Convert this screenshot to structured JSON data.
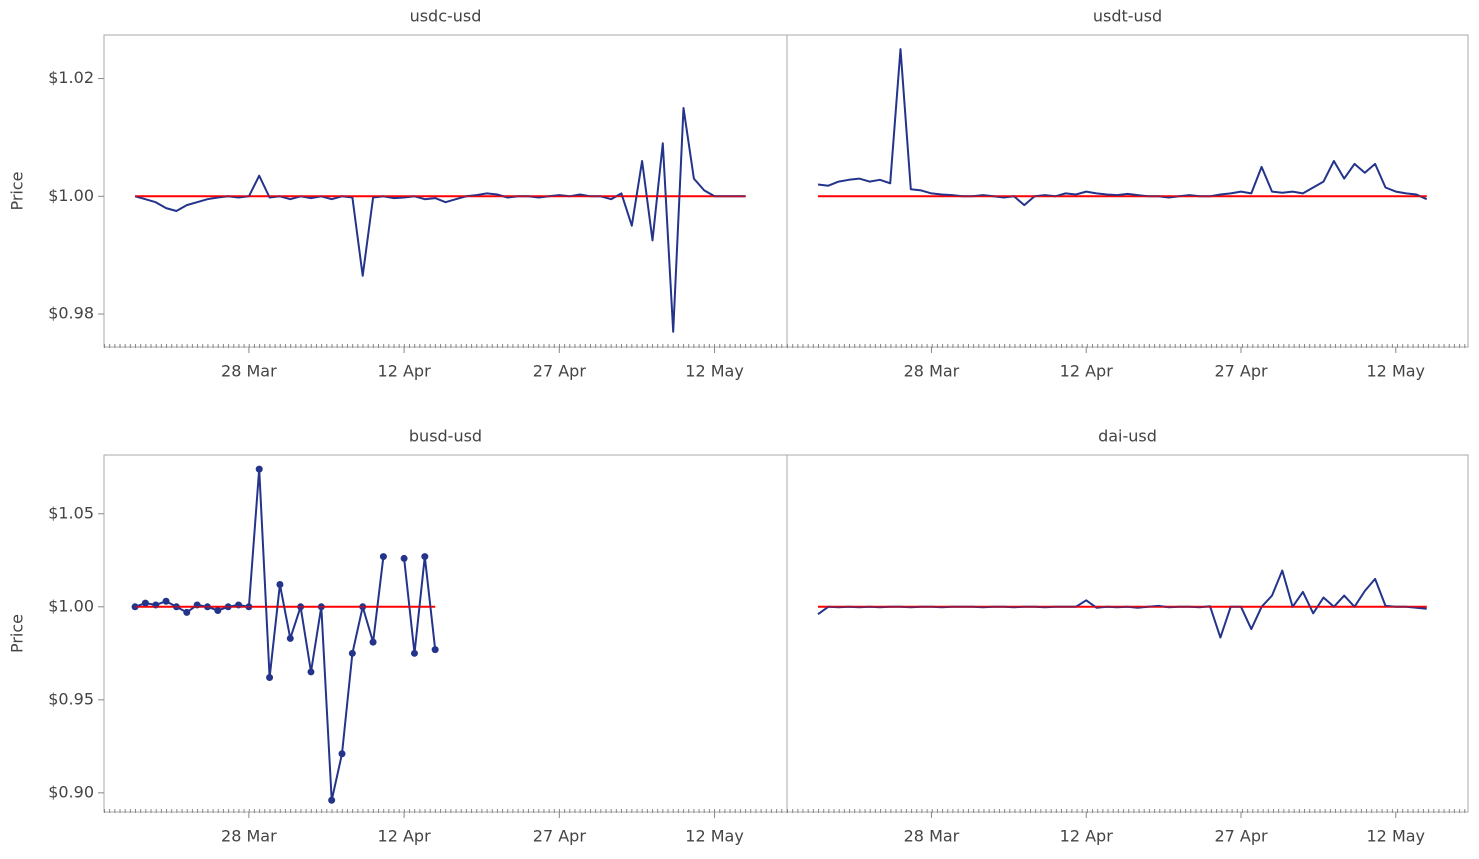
{
  "chart_data": [
    {
      "type": "line",
      "title": "usdc-usd",
      "ylabel": "Price",
      "color": "#24348a",
      "x": [
        "17 Mar",
        "18 Mar",
        "19 Mar",
        "20 Mar",
        "21 Mar",
        "22 Mar",
        "23 Mar",
        "24 Mar",
        "25 Mar",
        "26 Mar",
        "27 Mar",
        "28 Mar",
        "29 Mar",
        "30 Mar",
        "31 Mar",
        "1 Apr",
        "2 Apr",
        "3 Apr",
        "4 Apr",
        "5 Apr",
        "6 Apr",
        "7 Apr",
        "8 Apr",
        "9 Apr",
        "10 Apr",
        "11 Apr",
        "12 Apr",
        "13 Apr",
        "14 Apr",
        "15 Apr",
        "16 Apr",
        "17 Apr",
        "18 Apr",
        "19 Apr",
        "20 Apr",
        "21 Apr",
        "22 Apr",
        "23 Apr",
        "24 Apr",
        "25 Apr",
        "26 Apr",
        "27 Apr",
        "28 Apr",
        "29 Apr",
        "30 Apr",
        "1 May",
        "2 May",
        "3 May",
        "4 May",
        "5 May",
        "6 May",
        "7 May",
        "8 May",
        "9 May",
        "10 May",
        "11 May",
        "12 May",
        "13 May",
        "14 May",
        "15 May"
      ],
      "values": [
        1.0,
        0.9995,
        0.999,
        0.998,
        0.9975,
        0.9985,
        0.999,
        0.9995,
        0.9998,
        1.0,
        0.9998,
        1.0,
        1.0035,
        0.9998,
        1.0,
        0.9995,
        1.0,
        0.9997,
        1.0,
        0.9995,
        1.0,
        0.9998,
        0.9865,
        0.9998,
        1.0,
        0.9997,
        0.9998,
        1.0,
        0.9995,
        0.9997,
        0.999,
        0.9995,
        1.0,
        1.0002,
        1.0005,
        1.0003,
        0.9998,
        1.0,
        1.0,
        0.9998,
        1.0,
        1.0002,
        1.0,
        1.0003,
        1.0,
        1.0,
        0.9995,
        1.0005,
        0.995,
        1.006,
        0.9925,
        1.009,
        0.977,
        1.015,
        1.003,
        1.001,
        1.0,
        1.0,
        1.0,
        1.0
      ],
      "reference_line": {
        "value": 1,
        "color": "#ff0000"
      },
      "xlim": [
        "14 Mar",
        "19 May"
      ],
      "xticks": [
        "28 Mar",
        "12 Apr",
        "27 Apr",
        "12 May"
      ],
      "ylim": [
        0.9744,
        1.0274
      ],
      "yticks": [
        {
          "value": 0.98,
          "label": "$0.98"
        },
        {
          "value": 1.0,
          "label": "$1.00"
        },
        {
          "value": 1.02,
          "label": "$1.02"
        }
      ]
    },
    {
      "type": "line",
      "title": "usdt-usd",
      "color": "#24348a",
      "x": [
        "17 Mar",
        "18 Mar",
        "19 Mar",
        "20 Mar",
        "21 Mar",
        "22 Mar",
        "23 Mar",
        "24 Mar",
        "25 Mar",
        "26 Mar",
        "27 Mar",
        "28 Mar",
        "29 Mar",
        "30 Mar",
        "31 Mar",
        "1 Apr",
        "2 Apr",
        "3 Apr",
        "4 Apr",
        "5 Apr",
        "6 Apr",
        "7 Apr",
        "8 Apr",
        "9 Apr",
        "10 Apr",
        "11 Apr",
        "12 Apr",
        "13 Apr",
        "14 Apr",
        "15 Apr",
        "16 Apr",
        "17 Apr",
        "18 Apr",
        "19 Apr",
        "20 Apr",
        "21 Apr",
        "22 Apr",
        "23 Apr",
        "24 Apr",
        "25 Apr",
        "26 Apr",
        "27 Apr",
        "28 Apr",
        "29 Apr",
        "30 Apr",
        "1 May",
        "2 May",
        "3 May",
        "4 May",
        "5 May",
        "6 May",
        "7 May",
        "8 May",
        "9 May",
        "10 May",
        "11 May",
        "12 May",
        "13 May",
        "14 May",
        "15 May"
      ],
      "values": [
        1.002,
        1.0018,
        1.0025,
        1.0028,
        1.003,
        1.0025,
        1.0028,
        1.0022,
        1.025,
        1.0012,
        1.001,
        1.0005,
        1.0003,
        1.0002,
        1.0,
        1.0,
        1.0002,
        1.0,
        0.9998,
        1.0,
        0.9985,
        1.0,
        1.0002,
        1.0,
        1.0005,
        1.0003,
        1.0008,
        1.0005,
        1.0003,
        1.0002,
        1.0004,
        1.0002,
        1.0,
        1.0,
        0.9998,
        1.0,
        1.0002,
        1.0,
        1.0,
        1.0003,
        1.0005,
        1.0008,
        1.0005,
        1.005,
        1.0008,
        1.0006,
        1.0008,
        1.0005,
        1.0015,
        1.0025,
        1.006,
        1.003,
        1.0055,
        1.004,
        1.0055,
        1.0015,
        1.0008,
        1.0005,
        1.0003,
        0.9995
      ],
      "reference_line": {
        "value": 1,
        "color": "#ff0000"
      },
      "xlim": [
        "14 Mar",
        "19 May"
      ],
      "xticks": [
        "28 Mar",
        "12 Apr",
        "27 Apr",
        "12 May"
      ],
      "ylim": [
        0.9744,
        1.0274
      ]
    },
    {
      "type": "line",
      "title": "busd-usd",
      "ylabel": "Price",
      "color": "#24348a",
      "markers": true,
      "x": [
        "17 Mar",
        "18 Mar",
        "19 Mar",
        "20 Mar",
        "21 Mar",
        "22 Mar",
        "23 Mar",
        "24 Mar",
        "25 Mar",
        "26 Mar",
        "27 Mar",
        "28 Mar",
        "29 Mar",
        "30 Mar",
        "31 Mar",
        "1 Apr",
        "2 Apr",
        "3 Apr",
        "4 Apr",
        "5 Apr",
        "6 Apr",
        "7 Apr",
        "8 Apr",
        "9 Apr",
        "10 Apr",
        "11 Apr",
        "12 Apr",
        "13 Apr",
        "14 Apr",
        "15 Apr"
      ],
      "values": [
        1.0,
        1.002,
        1.001,
        1.003,
        1.0,
        0.997,
        1.001,
        1.0,
        0.998,
        1.0,
        1.001,
        1.0,
        1.074,
        0.962,
        1.012,
        0.983,
        1.0,
        0.965,
        1.0,
        0.896,
        0.921,
        0.975,
        1.0,
        0.981,
        1.027,
        null,
        1.026,
        0.975,
        1.027,
        0.977
      ],
      "reference_line": {
        "value": 1,
        "color": "#ff0000"
      },
      "xlim": [
        "14 Mar",
        "19 May"
      ],
      "xticks": [
        "28 Mar",
        "12 Apr",
        "27 Apr",
        "12 May"
      ],
      "ylim": [
        0.8897,
        1.0816
      ],
      "yticks": [
        {
          "value": 0.9,
          "label": "$0.90"
        },
        {
          "value": 0.95,
          "label": "$0.95"
        },
        {
          "value": 1.0,
          "label": "$1.00"
        },
        {
          "value": 1.05,
          "label": "$1.05"
        }
      ]
    },
    {
      "type": "line",
      "title": "dai-usd",
      "color": "#24348a",
      "x": [
        "17 Mar",
        "18 Mar",
        "19 Mar",
        "20 Mar",
        "21 Mar",
        "22 Mar",
        "23 Mar",
        "24 Mar",
        "25 Mar",
        "26 Mar",
        "27 Mar",
        "28 Mar",
        "29 Mar",
        "30 Mar",
        "31 Mar",
        "1 Apr",
        "2 Apr",
        "3 Apr",
        "4 Apr",
        "5 Apr",
        "6 Apr",
        "7 Apr",
        "8 Apr",
        "9 Apr",
        "10 Apr",
        "11 Apr",
        "12 Apr",
        "13 Apr",
        "14 Apr",
        "15 Apr",
        "16 Apr",
        "17 Apr",
        "18 Apr",
        "19 Apr",
        "20 Apr",
        "21 Apr",
        "22 Apr",
        "23 Apr",
        "24 Apr",
        "25 Apr",
        "26 Apr",
        "27 Apr",
        "28 Apr",
        "29 Apr",
        "30 Apr",
        "1 May",
        "2 May",
        "3 May",
        "4 May",
        "5 May",
        "6 May",
        "7 May",
        "8 May",
        "9 May",
        "10 May",
        "11 May",
        "12 May",
        "13 May",
        "14 May",
        "15 May"
      ],
      "values": [
        0.996,
        1.0,
        0.9998,
        1.0,
        0.9998,
        1.0,
        0.9998,
        1.0,
        1.0,
        0.9998,
        1.0,
        1.0,
        0.9998,
        1.0,
        1.0,
        1.0,
        0.9998,
        1.0,
        1.0,
        0.9998,
        1.0,
        1.0,
        0.9998,
        1.0,
        1.0,
        1.0,
        1.0035,
        0.9995,
        1.0,
        0.9998,
        1.0,
        0.9995,
        1.0,
        1.0005,
        0.9998,
        1.0,
        1.0,
        0.9998,
        1.0003,
        0.9835,
        1.0,
        1.0,
        0.988,
        1.0,
        1.006,
        1.0195,
        1.0,
        1.008,
        0.9965,
        1.005,
        1.0,
        1.006,
        1.0,
        1.0085,
        1.015,
        1.0005,
        1.0,
        1.0,
        0.9995,
        0.999
      ],
      "reference_line": {
        "value": 1,
        "color": "#ff0000"
      },
      "xlim": [
        "14 Mar",
        "19 May"
      ],
      "xticks": [
        "28 Mar",
        "12 Apr",
        "27 Apr",
        "12 May"
      ],
      "ylim": [
        0.8897,
        1.0816
      ]
    }
  ]
}
